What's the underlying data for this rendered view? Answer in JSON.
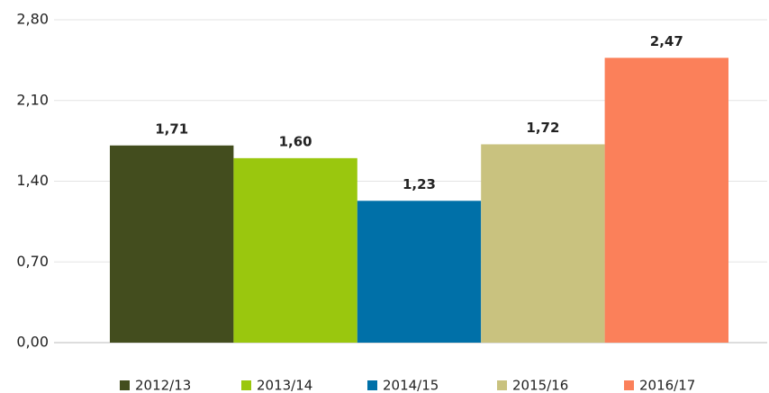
{
  "chart_data": {
    "type": "bar",
    "categories": [
      null
    ],
    "series": [
      {
        "name": "2012/13",
        "color": "#434d1e",
        "values": [
          1.71
        ],
        "value_labels": [
          "1,71"
        ]
      },
      {
        "name": "2013/14",
        "color": "#9ac70e",
        "values": [
          1.6
        ],
        "value_labels": [
          "1,60"
        ]
      },
      {
        "name": "2014/15",
        "color": "#0070a8",
        "values": [
          1.23
        ],
        "value_labels": [
          "1,23"
        ]
      },
      {
        "name": "2015/16",
        "color": "#c9c27f",
        "values": [
          1.72
        ],
        "value_labels": [
          "1,72"
        ]
      },
      {
        "name": "2016/17",
        "color": "#fb805a",
        "values": [
          2.47
        ],
        "value_labels": [
          "2,47"
        ]
      }
    ],
    "ylim": [
      0,
      2.8
    ],
    "yticks": [
      {
        "value": 0,
        "label": "0,00"
      },
      {
        "value": 0.7,
        "label": "0,70"
      },
      {
        "value": 1.4,
        "label": "1,40"
      },
      {
        "value": 2.1,
        "label": "2,10"
      },
      {
        "value": 2.8,
        "label": "2,80"
      }
    ],
    "grid": true,
    "legend": "bottom"
  }
}
